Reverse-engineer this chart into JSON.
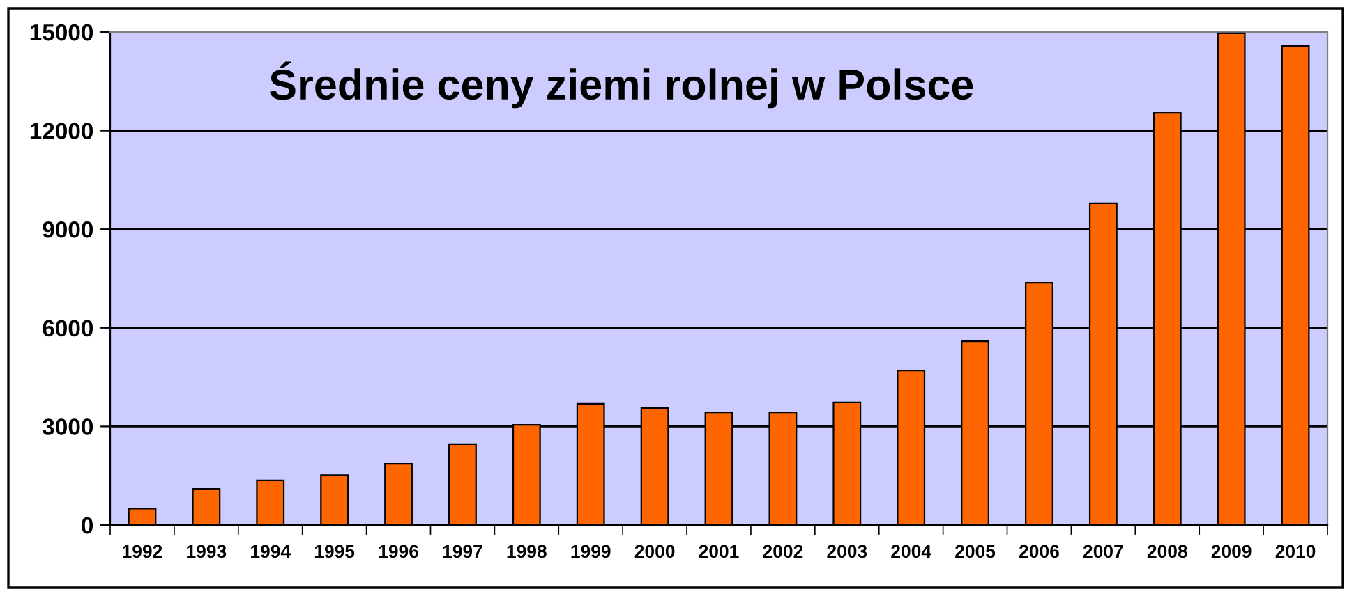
{
  "chart_data": {
    "type": "bar",
    "title": "Średnie ceny ziemi rolnej w Polsce",
    "categories": [
      "1992",
      "1993",
      "1994",
      "1995",
      "1996",
      "1997",
      "1998",
      "1999",
      "2000",
      "2001",
      "2002",
      "2003",
      "2004",
      "2005",
      "2006",
      "2007",
      "2008",
      "2009",
      "2010"
    ],
    "values": [
      500,
      1100,
      1360,
      1520,
      1860,
      2460,
      3050,
      3690,
      3560,
      3430,
      3430,
      3730,
      4700,
      5590,
      7370,
      9790,
      12540,
      14960,
      14580
    ],
    "color": "#ff6600",
    "ylim": [
      0,
      15000
    ],
    "yticks": [
      0,
      3000,
      6000,
      9000,
      12000,
      15000
    ],
    "grid": "y",
    "legend": false
  }
}
